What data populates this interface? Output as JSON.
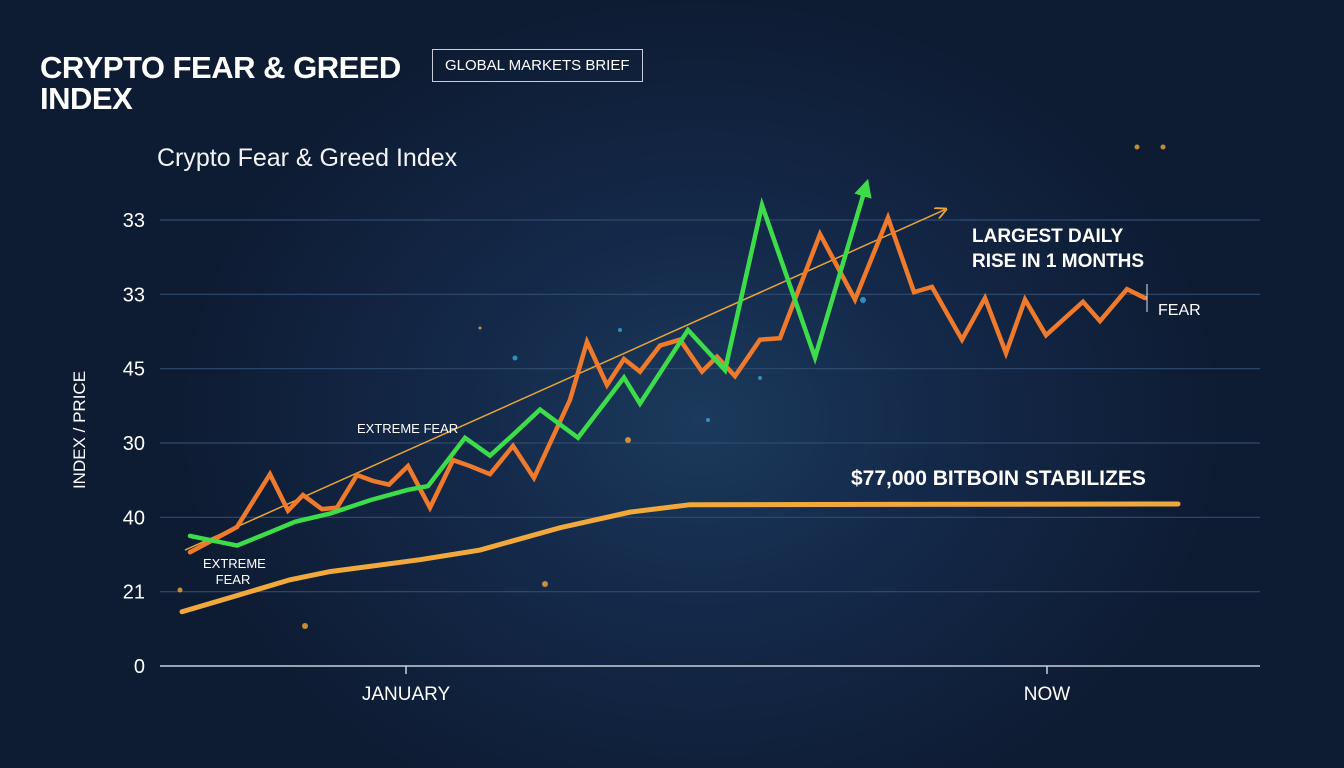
{
  "header": {
    "title": "CRYPTO FEAR & GREED INDEX",
    "badge": "GLOBAL MARKETS BRIEF"
  },
  "chart_data": {
    "type": "line",
    "title": "Crypto Fear & Greed Index",
    "xlabel": "",
    "ylabel": "INDEX / PRICE",
    "xlim": [
      0,
      110
    ],
    "ylim": [
      0,
      6
    ],
    "grid": true,
    "y_ticks": [
      {
        "level": 0,
        "label": "0"
      },
      {
        "level": 1,
        "label": "21"
      },
      {
        "level": 2,
        "label": "40"
      },
      {
        "level": 3,
        "label": "30"
      },
      {
        "level": 4,
        "label": "45"
      },
      {
        "level": 5,
        "label": "33"
      },
      {
        "level": 6,
        "label": "33"
      }
    ],
    "x_ticks": [
      {
        "x": 24.6,
        "label": "JANUARY"
      },
      {
        "x": 88.7,
        "label": "NOW"
      }
    ],
    "series": [
      {
        "color": "#f07a2c",
        "points": [
          [
            3.0,
            1.53
          ],
          [
            7.7,
            1.87
          ],
          [
            11.0,
            2.58
          ],
          [
            12.8,
            2.09
          ],
          [
            14.3,
            2.3
          ],
          [
            16.2,
            2.11
          ],
          [
            17.7,
            2.13
          ],
          [
            19.7,
            2.57
          ],
          [
            21.3,
            2.49
          ],
          [
            22.9,
            2.44
          ],
          [
            24.8,
            2.69
          ],
          [
            27.0,
            2.13
          ],
          [
            29.3,
            2.77
          ],
          [
            31.0,
            2.69
          ],
          [
            33.0,
            2.58
          ],
          [
            35.3,
            2.96
          ],
          [
            37.4,
            2.53
          ],
          [
            41.0,
            3.58
          ],
          [
            42.7,
            4.36
          ],
          [
            44.7,
            3.78
          ],
          [
            46.4,
            4.13
          ],
          [
            48.0,
            3.96
          ],
          [
            50.0,
            4.31
          ],
          [
            52.0,
            4.39
          ],
          [
            54.2,
            3.96
          ],
          [
            55.7,
            4.16
          ],
          [
            57.5,
            3.9
          ],
          [
            60.0,
            4.39
          ],
          [
            62.0,
            4.41
          ],
          [
            66.0,
            5.81
          ],
          [
            69.5,
            4.93
          ],
          [
            72.8,
            6.03
          ],
          [
            75.4,
            5.03
          ],
          [
            77.2,
            5.1
          ],
          [
            80.2,
            4.39
          ],
          [
            82.5,
            4.95
          ],
          [
            84.6,
            4.21
          ],
          [
            86.5,
            4.93
          ],
          [
            88.6,
            4.45
          ],
          [
            92.3,
            4.9
          ],
          [
            94.0,
            4.64
          ],
          [
            96.7,
            5.07
          ],
          [
            98.5,
            4.95
          ]
        ]
      },
      {
        "color": "#3ddc4a",
        "points": [
          [
            3.0,
            1.75
          ],
          [
            7.7,
            1.62
          ],
          [
            11.0,
            1.8
          ],
          [
            13.5,
            1.94
          ],
          [
            17.0,
            2.05
          ],
          [
            21.0,
            2.23
          ],
          [
            24.8,
            2.37
          ],
          [
            26.8,
            2.42
          ],
          [
            30.5,
            3.07
          ],
          [
            33.0,
            2.83
          ],
          [
            35.3,
            3.11
          ],
          [
            38.0,
            3.45
          ],
          [
            41.8,
            3.07
          ],
          [
            46.4,
            3.88
          ],
          [
            48.0,
            3.53
          ],
          [
            52.8,
            4.52
          ],
          [
            56.5,
            3.98
          ],
          [
            60.2,
            6.2
          ],
          [
            65.5,
            4.15
          ],
          [
            70.6,
            6.46
          ]
        ]
      },
      {
        "color": "#f2a93b",
        "points": [
          [
            2.2,
            0.73
          ],
          [
            7.0,
            0.92
          ],
          [
            13.0,
            1.16
          ],
          [
            17.0,
            1.27
          ],
          [
            26.0,
            1.43
          ],
          [
            32.0,
            1.56
          ],
          [
            40.0,
            1.86
          ],
          [
            47.0,
            2.07
          ],
          [
            53.0,
            2.17
          ],
          [
            101.8,
            2.18
          ]
        ]
      }
    ],
    "trend_arrow": {
      "color": "#e8a43a",
      "from": [
        2.5,
        1.56
      ],
      "to": [
        78.5,
        6.14
      ]
    },
    "annotations": {
      "largest_rise": "LARGEST DAILY RISE IN 1 MONTHS",
      "fear": "FEAR",
      "stabilizes": "$77,000 BITBOIN STABILIZES",
      "extreme_fear_mid": "EXTREME FEAR",
      "extreme_fear_low": "EXTREME FEAR"
    }
  }
}
